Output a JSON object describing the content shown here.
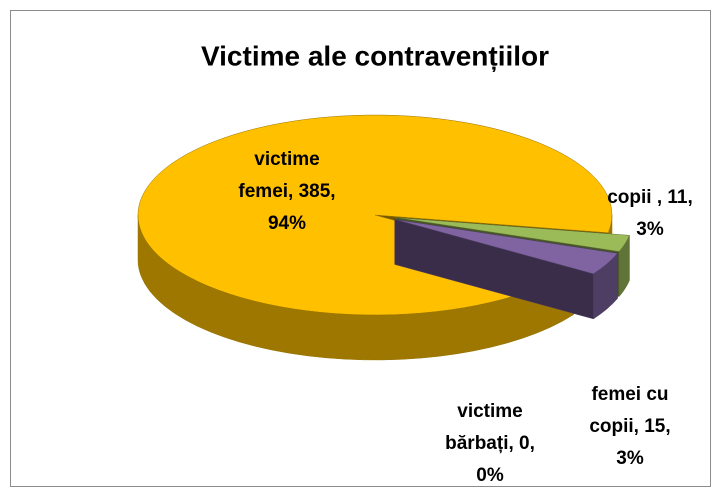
{
  "chart_data": {
    "type": "pie3d",
    "title": "Victime ale contravențiilor",
    "values": [
      385,
      11,
      15,
      0
    ],
    "labels": [
      [
        "victime",
        "femei, 385,",
        "94%"
      ],
      [
        "copii , 11,",
        "3%"
      ],
      [
        "femei cu",
        "copii, 15,",
        "3%"
      ],
      [
        "victime",
        "bărbați, 0,",
        "0%"
      ]
    ],
    "colors": [
      "#ffc000",
      "#9bbb59",
      "#8064a2",
      "#4f81bd"
    ]
  }
}
